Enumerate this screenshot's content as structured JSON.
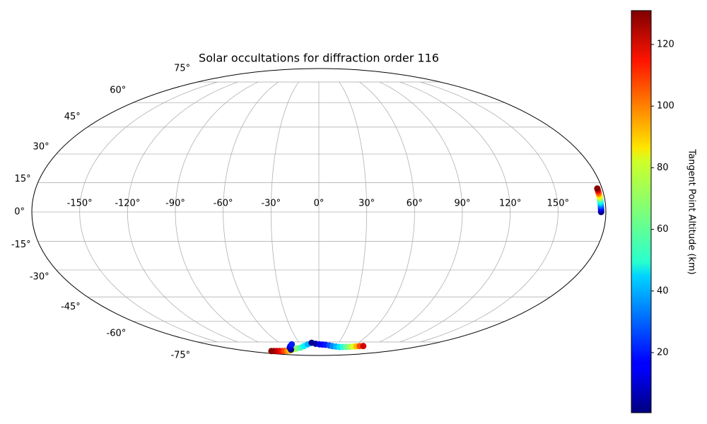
{
  "chart_data": {
    "type": "geo-scatter",
    "projection": "mollweide",
    "title": "Solar occultations for diffraction order 116",
    "colorbar_label": "Tangent Point Altitude (km)",
    "colormap": "jet",
    "clim": [
      0.5,
      131
    ],
    "grid": true,
    "colorbar_ticks": [
      20,
      40,
      60,
      80,
      100,
      120
    ],
    "xlim": [
      -180,
      180
    ],
    "ylim": [
      -90,
      90
    ],
    "xticks": [
      {
        "value": -150,
        "label": "-150°"
      },
      {
        "value": -120,
        "label": "-120°"
      },
      {
        "value": -90,
        "label": "-90°"
      },
      {
        "value": -60,
        "label": "-60°"
      },
      {
        "value": -30,
        "label": "-30°"
      },
      {
        "value": 0,
        "label": "0°"
      },
      {
        "value": 30,
        "label": "30°"
      },
      {
        "value": 60,
        "label": "60°"
      },
      {
        "value": 90,
        "label": "90°"
      },
      {
        "value": 120,
        "label": "120°"
      },
      {
        "value": 150,
        "label": "150°"
      }
    ],
    "yticks": [
      {
        "value": -75,
        "label": "-75°"
      },
      {
        "value": -60,
        "label": "-60°"
      },
      {
        "value": -45,
        "label": "-45°"
      },
      {
        "value": -30,
        "label": "-30°"
      },
      {
        "value": -15,
        "label": "-15°"
      },
      {
        "value": 0,
        "label": "0°"
      },
      {
        "value": 15,
        "label": "15°"
      },
      {
        "value": 30,
        "label": "30°"
      },
      {
        "value": 45,
        "label": "45°"
      },
      {
        "value": 60,
        "label": "60°"
      },
      {
        "value": 75,
        "label": "75°"
      }
    ],
    "series": [
      {
        "lon": [
          177,
          177,
          177,
          177,
          177,
          177,
          177,
          177,
          177,
          177,
          177,
          177,
          177,
          -121,
          -114,
          -107,
          -100,
          -93,
          -86,
          -78,
          -71,
          -62,
          -53,
          -44,
          -35,
          -26,
          -18,
          -62,
          -56,
          -50,
          -44,
          -11,
          -5,
          1,
          6,
          11,
          18,
          24,
          31,
          38,
          44,
          50,
          56,
          62,
          67,
          72,
          78
        ],
        "lat": [
          0,
          1,
          2,
          3,
          4,
          5,
          6,
          7,
          8,
          9,
          10,
          11,
          12,
          -83.5,
          -83.5,
          -83.5,
          -83.5,
          -83.5,
          -83.3,
          -83.2,
          -83,
          -82.3,
          -81.5,
          -80.7,
          -80,
          -78.5,
          -77,
          -82,
          -80,
          -78.5,
          -77,
          -75.7,
          -76.5,
          -77,
          -77.2,
          -77.4,
          -78,
          -78.6,
          -79,
          -79.4,
          -79.4,
          -79.3,
          -79.2,
          -79,
          -78.8,
          -78.6,
          -78.5
        ],
        "altitude": [
          0,
          8,
          18,
          28,
          38,
          48,
          58,
          70,
          82,
          94,
          106,
          118,
          130,
          130,
          128,
          124,
          118,
          112,
          105,
          97,
          90,
          82,
          74,
          66,
          58,
          48,
          40,
          0,
          8,
          14,
          20,
          2,
          6,
          12,
          16,
          20,
          27,
          34,
          40,
          46,
          54,
          62,
          70,
          78,
          90,
          104,
          120
        ]
      }
    ]
  }
}
